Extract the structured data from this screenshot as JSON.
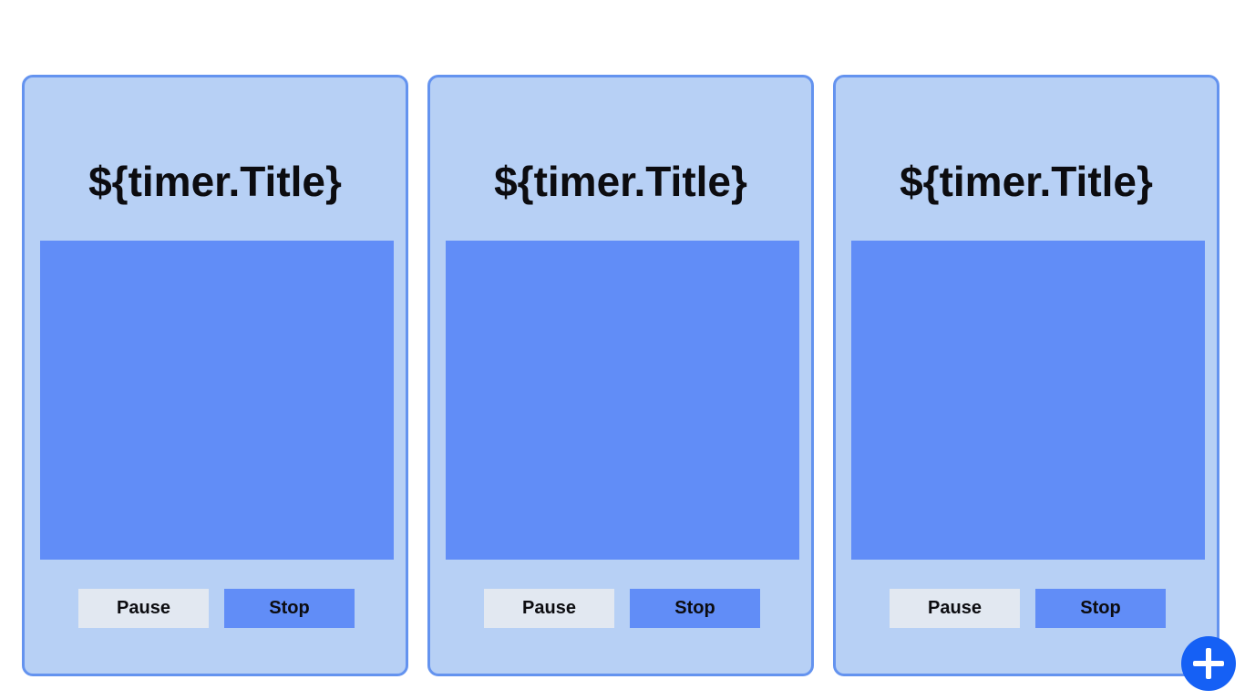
{
  "timers": [
    {
      "title": "${timer.Title}",
      "pause_label": "Pause",
      "stop_label": "Stop"
    },
    {
      "title": "${timer.Title}",
      "pause_label": "Pause",
      "stop_label": "Stop"
    },
    {
      "title": "${timer.Title}",
      "pause_label": "Pause",
      "stop_label": "Stop"
    }
  ],
  "add_button": {
    "icon": "plus-icon"
  },
  "colors": {
    "card_background": "#b7d0f5",
    "card_border": "#6493ef",
    "timer_display": "#618df7",
    "pause_button": "#e2e8f1",
    "stop_button": "#618df7",
    "add_button": "#1560f5"
  }
}
